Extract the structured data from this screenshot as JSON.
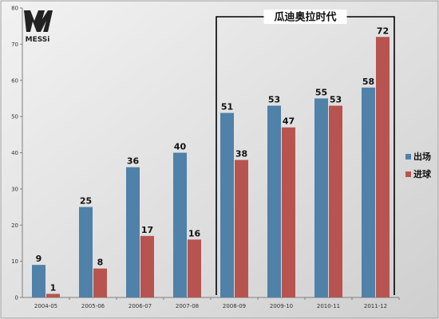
{
  "logo": {
    "text": "MESSi"
  },
  "chart_data": {
    "type": "bar",
    "title": "",
    "xlabel": "",
    "ylabel": "",
    "ylim": [
      0,
      80
    ],
    "yticks": [
      0,
      10,
      20,
      30,
      40,
      50,
      60,
      70,
      80
    ],
    "categories": [
      "2004-05",
      "2005-06",
      "2006-07",
      "2007-08",
      "2008-09",
      "2009-10",
      "2010-11",
      "2011-12"
    ],
    "series": [
      {
        "name": "出场",
        "values": [
          9,
          25,
          36,
          40,
          51,
          53,
          55,
          58
        ],
        "color": "#4f81a9"
      },
      {
        "name": "进球",
        "values": [
          1,
          8,
          17,
          16,
          38,
          47,
          53,
          72
        ],
        "color": "#b85450"
      }
    ],
    "legend_position": "right",
    "grid": false,
    "annotation": {
      "label": "瓜迪奥拉时代",
      "start_category": "2008-09",
      "end_category": "2011-12"
    }
  }
}
